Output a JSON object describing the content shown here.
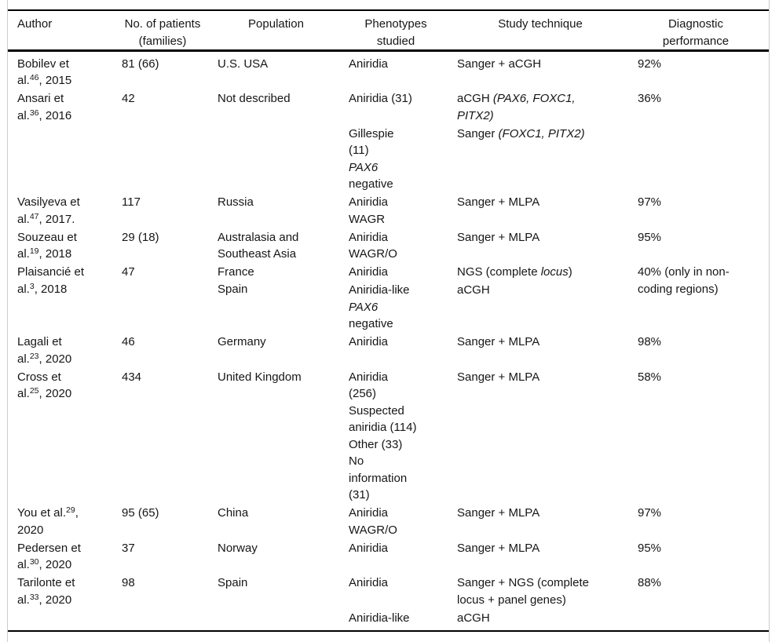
{
  "page": {
    "background": "#ffffff",
    "text_color": "#161616",
    "rule_color": "#000000",
    "frame_border_color": "#cccccc"
  },
  "table": {
    "headers": {
      "author": [
        "Author"
      ],
      "patients": [
        "No. of patients",
        "(families)"
      ],
      "population": [
        "Population"
      ],
      "phenotypes": [
        "Phenotypes",
        "studied"
      ],
      "technique": [
        "Study technique"
      ],
      "performance": [
        "Diagnostic",
        "performance"
      ]
    },
    "rows": [
      {
        "author": [
          "Bobilev et",
          "al.^46^, 2015"
        ],
        "patients": [
          "81 (66)"
        ],
        "population": [
          "U.S. USA"
        ],
        "groups": [
          {
            "phenotypes": [
              "Aniridia"
            ],
            "technique": [
              "Sanger + aCGH"
            ]
          }
        ],
        "performance": [
          "92%"
        ]
      },
      {
        "author": [
          "Ansari et",
          "al.^36^, 2016"
        ],
        "patients": [
          "42"
        ],
        "population": [
          "Not described"
        ],
        "groups": [
          {
            "phenotypes": [
              "Aniridia (31)"
            ],
            "technique": [
              "aCGH *(PAX6, FOXC1,*",
              "*PITX2)*"
            ]
          },
          {
            "phenotypes": [
              "Gillespie",
              "(11)",
              "*PAX6*",
              "negative"
            ],
            "technique": [
              "Sanger *(FOXC1, PITX2)*"
            ]
          }
        ],
        "performance": [
          "36%"
        ]
      },
      {
        "author": [
          "Vasilyeva et",
          "al.^47^, 2017."
        ],
        "patients": [
          "117"
        ],
        "population": [
          "Russia"
        ],
        "groups": [
          {
            "phenotypes": [
              "Aniridia",
              "WAGR"
            ],
            "technique": [
              "Sanger + MLPA"
            ]
          }
        ],
        "performance": [
          "97%"
        ]
      },
      {
        "author": [
          "Souzeau et",
          "al.^19^, 2018"
        ],
        "patients": [
          "29 (18)"
        ],
        "population": [
          "Australasia and",
          "Southeast Asia"
        ],
        "groups": [
          {
            "phenotypes": [
              "Aniridia",
              "WAGR/O"
            ],
            "technique": [
              "Sanger + MLPA"
            ]
          }
        ],
        "performance": [
          "95%"
        ]
      },
      {
        "author": [
          "Plaisancié et",
          "al.^3^, 2018"
        ],
        "patients": [
          "47"
        ],
        "population": [
          "France",
          "Spain"
        ],
        "groups": [
          {
            "phenotypes": [
              "Aniridia"
            ],
            "technique": [
              "NGS (complete *locus*)"
            ]
          },
          {
            "phenotypes": [
              "Aniridia-like",
              "*PAX6*",
              "negative"
            ],
            "technique": [
              "aCGH"
            ]
          }
        ],
        "performance": [
          "40% (only in non-",
          "coding regions)"
        ]
      },
      {
        "author": [
          "Lagali et",
          "al.^23^, 2020"
        ],
        "patients": [
          "46"
        ],
        "population": [
          "Germany"
        ],
        "groups": [
          {
            "phenotypes": [
              "Aniridia"
            ],
            "technique": [
              "Sanger + MLPA"
            ]
          }
        ],
        "performance": [
          "98%"
        ]
      },
      {
        "author": [
          "Cross et",
          "al.^25^, 2020"
        ],
        "patients": [
          "434"
        ],
        "population": [
          "United Kingdom"
        ],
        "groups": [
          {
            "phenotypes": [
              "Aniridia",
              "(256)",
              "Suspected",
              "aniridia (114)",
              "Other (33)",
              "No",
              "information",
              "(31)"
            ],
            "technique": [
              "Sanger + MLPA"
            ]
          }
        ],
        "performance": [
          "58%"
        ]
      },
      {
        "author": [
          "You et al.^29^,",
          "2020"
        ],
        "patients": [
          "95 (65)"
        ],
        "population": [
          "China"
        ],
        "groups": [
          {
            "phenotypes": [
              "Aniridia",
              "WAGR/O"
            ],
            "technique": [
              "Sanger + MLPA"
            ]
          }
        ],
        "performance": [
          "97%"
        ]
      },
      {
        "author": [
          "Pedersen et",
          "al.^30^, 2020"
        ],
        "patients": [
          "37"
        ],
        "population": [
          "Norway"
        ],
        "groups": [
          {
            "phenotypes": [
              "Aniridia"
            ],
            "technique": [
              "Sanger + MLPA"
            ]
          }
        ],
        "performance": [
          "95%"
        ]
      },
      {
        "author": [
          "Tarilonte et",
          "al.^33^, 2020"
        ],
        "patients": [
          "98"
        ],
        "population": [
          "Spain"
        ],
        "groups": [
          {
            "phenotypes": [
              "Aniridia"
            ],
            "technique": [
              "Sanger + NGS (complete",
              "locus + panel genes)"
            ]
          },
          {
            "phenotypes": [
              "Aniridia-like"
            ],
            "technique": [
              "aCGH"
            ]
          }
        ],
        "performance": [
          "88%"
        ]
      }
    ]
  }
}
